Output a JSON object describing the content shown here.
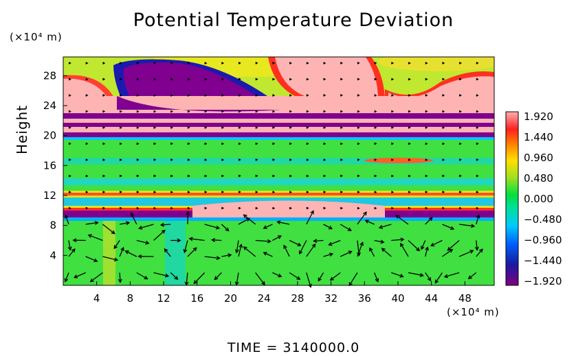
{
  "chart_data": {
    "type": "heatmap",
    "title": "Potential Temperature Deviation",
    "y_units": "(×10⁴ m)",
    "x_units": "(×10⁴ m)",
    "ylabel": "Height",
    "footer": "TIME = 3140000.0",
    "x_ticks": [
      "4",
      "8",
      "12",
      "16",
      "20",
      "24",
      "28",
      "32",
      "36",
      "40",
      "44",
      "48"
    ],
    "y_ticks": [
      "4",
      "8",
      "12",
      "16",
      "20",
      "24",
      "28"
    ],
    "xlim": [
      0,
      51.5
    ],
    "ylim": [
      0,
      30.5
    ],
    "colorbar": {
      "labels": [
        "1.920",
        "1.440",
        "0.960",
        "0.480",
        "0.000",
        "−0.480",
        "−0.960",
        "−1.440",
        "−1.920"
      ],
      "range": [
        -1.92,
        1.92
      ],
      "colors": [
        "#800080",
        "#1010d0",
        "#00b0ff",
        "#00d8b0",
        "#00e040",
        "#80e020",
        "#e0e000",
        "#ff8000",
        "#ff2020",
        "#ffb0b0"
      ]
    },
    "overlay": "wind vectors (arrows)",
    "legend_placement": "right"
  }
}
